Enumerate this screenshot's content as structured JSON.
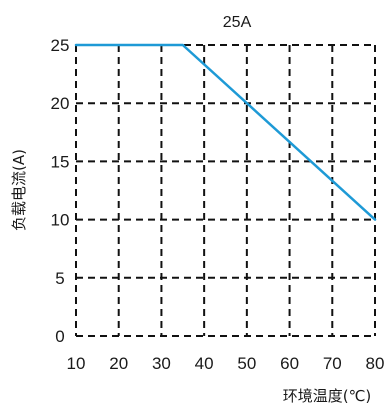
{
  "chart_data": {
    "type": "line",
    "title": "25A",
    "xlabel": "环境温度(℃)",
    "ylabel": "负载电流(A)",
    "x_ticks": [
      "10",
      "20",
      "30",
      "40",
      "50",
      "60",
      "70",
      "80"
    ],
    "y_ticks": [
      "0",
      "5",
      "10",
      "15",
      "20",
      "25"
    ],
    "xlim": [
      10,
      80
    ],
    "ylim": [
      0,
      25
    ],
    "grid": true,
    "series": [
      {
        "x": [
          10,
          35,
          80
        ],
        "y": [
          25,
          25,
          10
        ],
        "color": "#1e9ad6"
      }
    ]
  }
}
